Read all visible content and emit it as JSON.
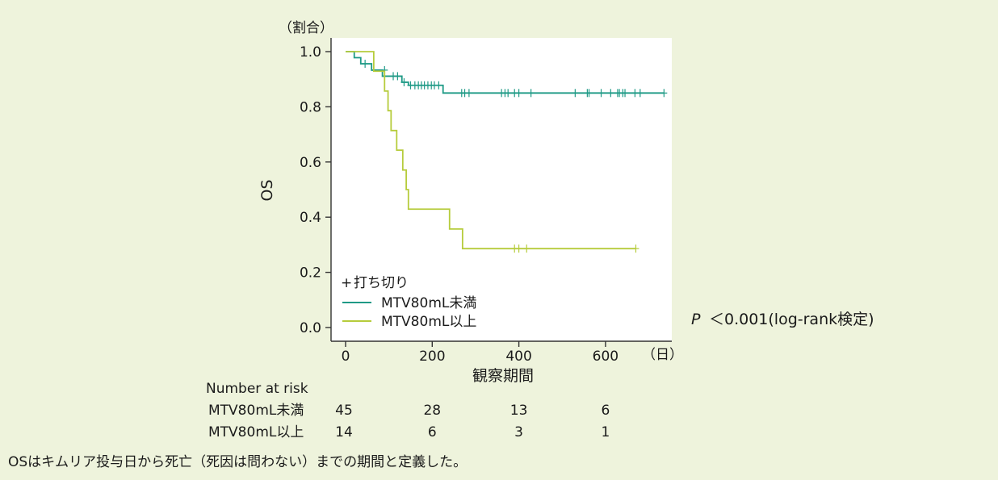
{
  "chart_data": {
    "type": "line",
    "subtype": "kaplan-meier",
    "title": "",
    "ylabel": "OS",
    "y_unit": "（割合）",
    "xlabel": "観察期間",
    "x_unit": "（日）",
    "xlim": [
      -20,
      760
    ],
    "ylim": [
      0.0,
      1.0
    ],
    "x_ticks": [
      0,
      200,
      400,
      600
    ],
    "y_ticks": [
      0.0,
      0.2,
      0.4,
      0.6,
      0.8,
      1.0
    ],
    "x_tick_labels": [
      "0",
      "200",
      "400",
      "600"
    ],
    "y_tick_labels": [
      "0.0",
      "0.2",
      "0.4",
      "0.6",
      "0.8",
      "1.0"
    ],
    "grid": false,
    "legend": {
      "position": "bottom-left",
      "censor_symbol": "+",
      "censor_label": "打ち切り"
    },
    "series": [
      {
        "name": "MTV80mL未満",
        "color": "#1f9a86",
        "steps": [
          [
            0,
            1.0
          ],
          [
            20,
            0.978
          ],
          [
            35,
            0.956
          ],
          [
            60,
            0.933
          ],
          [
            85,
            0.911
          ],
          [
            130,
            0.889
          ],
          [
            145,
            0.878
          ],
          [
            225,
            0.85
          ],
          [
            735,
            0.85
          ]
        ],
        "censored": [
          [
            45,
            0.956
          ],
          [
            90,
            0.933
          ],
          [
            110,
            0.911
          ],
          [
            120,
            0.911
          ],
          [
            135,
            0.889
          ],
          [
            150,
            0.878
          ],
          [
            160,
            0.878
          ],
          [
            168,
            0.878
          ],
          [
            175,
            0.878
          ],
          [
            182,
            0.878
          ],
          [
            190,
            0.878
          ],
          [
            198,
            0.878
          ],
          [
            205,
            0.878
          ],
          [
            215,
            0.878
          ],
          [
            268,
            0.85
          ],
          [
            275,
            0.85
          ],
          [
            285,
            0.85
          ],
          [
            360,
            0.85
          ],
          [
            368,
            0.85
          ],
          [
            375,
            0.85
          ],
          [
            390,
            0.85
          ],
          [
            400,
            0.85
          ],
          [
            428,
            0.85
          ],
          [
            530,
            0.85
          ],
          [
            558,
            0.85
          ],
          [
            562,
            0.85
          ],
          [
            590,
            0.85
          ],
          [
            612,
            0.85
          ],
          [
            628,
            0.85
          ],
          [
            632,
            0.85
          ],
          [
            640,
            0.85
          ],
          [
            645,
            0.85
          ],
          [
            668,
            0.85
          ],
          [
            680,
            0.85
          ],
          [
            735,
            0.85
          ]
        ]
      },
      {
        "name": "MTV80mL以上",
        "color": "#b6cc3c",
        "steps": [
          [
            0,
            1.0
          ],
          [
            65,
            0.929
          ],
          [
            90,
            0.857
          ],
          [
            98,
            0.786
          ],
          [
            105,
            0.714
          ],
          [
            118,
            0.643
          ],
          [
            132,
            0.571
          ],
          [
            140,
            0.5
          ],
          [
            145,
            0.429
          ],
          [
            240,
            0.357
          ],
          [
            270,
            0.286
          ],
          [
            670,
            0.286
          ]
        ],
        "censored": [
          [
            390,
            0.286
          ],
          [
            400,
            0.286
          ],
          [
            418,
            0.286
          ],
          [
            670,
            0.286
          ]
        ]
      }
    ],
    "number_at_risk": {
      "title": "Number at risk",
      "times": [
        0,
        200,
        400,
        600
      ],
      "rows": [
        {
          "label": "MTV80mL未満",
          "counts": [
            "45",
            "28",
            "13",
            "6"
          ]
        },
        {
          "label": "MTV80mL以上",
          "counts": [
            "14",
            "6",
            "3",
            "1"
          ]
        }
      ]
    },
    "annotation": {
      "p_symbol": "P",
      "p_text": "＜0.001(log-rank検定)"
    }
  },
  "footnote": "OSはキムリア投与日から死亡（死因は問わない）までの期間と定義した。"
}
